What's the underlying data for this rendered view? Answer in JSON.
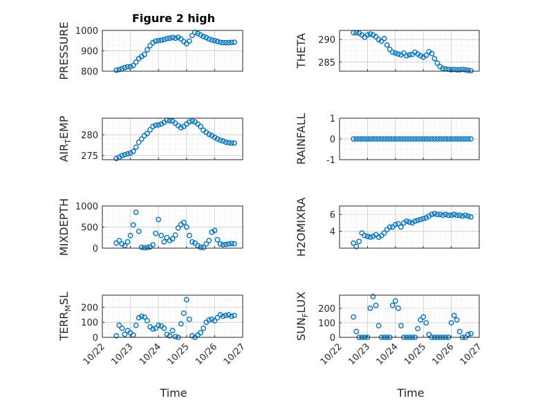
{
  "figure": {
    "title": "Figure 2 high"
  },
  "xaxis": {
    "label": "Time",
    "ticks": [
      "10/22",
      "10/23",
      "10/24",
      "10/25",
      "10/26",
      "10/27"
    ]
  },
  "marker_color": "#0072BD",
  "chart_data": [
    {
      "type": "scatter",
      "ylabel": "PRESSURE",
      "ylim": [
        800,
        1000
      ],
      "yticks": [
        "800",
        "900",
        "1000"
      ],
      "xlim": [
        0,
        5
      ],
      "x": [
        0.5,
        0.6,
        0.7,
        0.8,
        0.9,
        1.0,
        1.1,
        1.2,
        1.3,
        1.4,
        1.5,
        1.6,
        1.7,
        1.8,
        1.9,
        2.0,
        2.1,
        2.2,
        2.3,
        2.4,
        2.5,
        2.6,
        2.7,
        2.8,
        2.9,
        3.0,
        3.1,
        3.2,
        3.3,
        3.4,
        3.5,
        3.6,
        3.7,
        3.8,
        3.9,
        4.0,
        4.1,
        4.2,
        4.3,
        4.4,
        4.5,
        4.6,
        4.7
      ],
      "y": [
        805,
        808,
        812,
        818,
        822,
        822,
        828,
        845,
        862,
        872,
        882,
        905,
        925,
        940,
        948,
        950,
        952,
        955,
        960,
        962,
        965,
        962,
        966,
        958,
        945,
        935,
        948,
        975,
        990,
        985,
        978,
        970,
        965,
        958,
        953,
        950,
        946,
        942,
        940,
        940,
        940,
        941,
        942
      ]
    },
    {
      "type": "scatter",
      "ylabel": "THETA",
      "ylim": [
        283,
        292
      ],
      "yticks": [
        "285",
        "290"
      ],
      "xlim": [
        0,
        5
      ],
      "x": [
        0.5,
        0.6,
        0.7,
        0.8,
        0.9,
        1.0,
        1.1,
        1.2,
        1.3,
        1.4,
        1.5,
        1.6,
        1.7,
        1.8,
        1.9,
        2.0,
        2.1,
        2.2,
        2.3,
        2.4,
        2.5,
        2.6,
        2.7,
        2.8,
        2.9,
        3.0,
        3.1,
        3.2,
        3.3,
        3.4,
        3.5,
        3.6,
        3.7,
        3.8,
        3.9,
        4.0,
        4.1,
        4.2,
        4.3,
        4.4,
        4.5,
        4.6,
        4.7
      ],
      "y": [
        291.5,
        291.5,
        291.4,
        291.0,
        290.5,
        291.0,
        291.2,
        291.0,
        290.6,
        290.0,
        289.6,
        290.2,
        288.8,
        287.8,
        287.2,
        287.0,
        286.8,
        286.6,
        287.0,
        286.4,
        286.6,
        286.7,
        287.2,
        286.8,
        286.4,
        286.1,
        286.5,
        287.3,
        286.9,
        285.8,
        284.8,
        284.0,
        283.6,
        283.5,
        283.4,
        283.3,
        283.4,
        283.3,
        283.3,
        283.4,
        283.3,
        283.2,
        283.1
      ]
    },
    {
      "type": "scatter",
      "ylabel": "AIR_TEMP",
      "ylim": [
        274,
        284
      ],
      "yticks": [
        "275",
        "280"
      ],
      "xlim": [
        0,
        5
      ],
      "x": [
        0.5,
        0.6,
        0.7,
        0.8,
        0.9,
        1.0,
        1.1,
        1.2,
        1.3,
        1.4,
        1.5,
        1.6,
        1.7,
        1.8,
        1.9,
        2.0,
        2.1,
        2.2,
        2.3,
        2.4,
        2.5,
        2.6,
        2.7,
        2.8,
        2.9,
        3.0,
        3.1,
        3.2,
        3.3,
        3.4,
        3.5,
        3.6,
        3.7,
        3.8,
        3.9,
        4.0,
        4.1,
        4.2,
        4.3,
        4.4,
        4.5,
        4.6,
        4.7
      ],
      "y": [
        274.3,
        274.6,
        275.0,
        275.2,
        275.4,
        275.6,
        276.0,
        277.0,
        278.2,
        279.0,
        279.8,
        280.3,
        281.2,
        282.0,
        282.3,
        282.4,
        282.6,
        283.0,
        283.5,
        283.4,
        283.3,
        282.8,
        282.2,
        281.7,
        282.0,
        282.6,
        283.1,
        283.3,
        283.1,
        282.6,
        282.0,
        281.1,
        280.6,
        280.1,
        279.8,
        279.4,
        279.0,
        278.7,
        278.5,
        278.2,
        278.1,
        278.0,
        278.0
      ]
    },
    {
      "type": "scatter",
      "ylabel": "RAINFALL",
      "ylim": [
        -1,
        1
      ],
      "yticks": [
        "-1",
        "0",
        "1"
      ],
      "xlim": [
        0,
        5
      ],
      "x": [
        0.5,
        0.6,
        0.7,
        0.8,
        0.9,
        1.0,
        1.1,
        1.2,
        1.3,
        1.4,
        1.5,
        1.6,
        1.7,
        1.8,
        1.9,
        2.0,
        2.1,
        2.2,
        2.3,
        2.4,
        2.5,
        2.6,
        2.7,
        2.8,
        2.9,
        3.0,
        3.1,
        3.2,
        3.3,
        3.4,
        3.5,
        3.6,
        3.7,
        3.8,
        3.9,
        4.0,
        4.1,
        4.2,
        4.3,
        4.4,
        4.5,
        4.6,
        4.7
      ],
      "y": [
        0,
        0,
        0,
        0,
        0,
        0,
        0,
        0,
        0,
        0,
        0,
        0,
        0,
        0,
        0,
        0,
        0,
        0,
        0,
        0,
        0,
        0,
        0,
        0,
        0,
        0,
        0,
        0,
        0,
        0,
        0,
        0,
        0,
        0,
        0,
        0,
        0,
        0,
        0,
        0,
        0,
        0,
        0
      ]
    },
    {
      "type": "scatter",
      "ylabel": "MIXDEPTH",
      "ylim": [
        0,
        1000
      ],
      "yticks": [
        "0",
        "500",
        "1000"
      ],
      "xlim": [
        0,
        5
      ],
      "x": [
        0.5,
        0.6,
        0.7,
        0.8,
        0.9,
        1.0,
        1.1,
        1.2,
        1.3,
        1.4,
        1.5,
        1.6,
        1.7,
        1.8,
        1.9,
        2.0,
        2.1,
        2.2,
        2.3,
        2.4,
        2.5,
        2.6,
        2.7,
        2.8,
        2.9,
        3.0,
        3.1,
        3.2,
        3.3,
        3.4,
        3.5,
        3.6,
        3.7,
        3.8,
        3.9,
        4.0,
        4.1,
        4.2,
        4.3,
        4.4,
        4.5,
        4.6,
        4.7
      ],
      "y": [
        120,
        180,
        100,
        60,
        150,
        300,
        550,
        850,
        400,
        20,
        10,
        15,
        30,
        80,
        350,
        680,
        300,
        150,
        250,
        180,
        220,
        310,
        480,
        560,
        610,
        500,
        300,
        150,
        120,
        60,
        20,
        15,
        100,
        180,
        380,
        420,
        200,
        100,
        80,
        90,
        100,
        110,
        105
      ]
    },
    {
      "type": "scatter",
      "ylabel": "H2OMIXRA",
      "ylim": [
        2,
        7
      ],
      "yticks": [
        "4",
        "6"
      ],
      "xlim": [
        0,
        5
      ],
      "x": [
        0.5,
        0.6,
        0.7,
        0.8,
        0.9,
        1.0,
        1.1,
        1.2,
        1.3,
        1.4,
        1.5,
        1.6,
        1.7,
        1.8,
        1.9,
        2.0,
        2.1,
        2.2,
        2.3,
        2.4,
        2.5,
        2.6,
        2.7,
        2.8,
        2.9,
        3.0,
        3.1,
        3.2,
        3.3,
        3.4,
        3.5,
        3.6,
        3.7,
        3.8,
        3.9,
        4.0,
        4.1,
        4.2,
        4.3,
        4.4,
        4.5,
        4.6,
        4.7
      ],
      "y": [
        2.6,
        2.2,
        2.8,
        3.8,
        3.5,
        3.4,
        3.3,
        3.4,
        3.6,
        3.3,
        3.5,
        3.8,
        4.2,
        4.5,
        4.5,
        4.8,
        4.9,
        4.5,
        5.0,
        5.2,
        5.1,
        5.0,
        5.2,
        5.3,
        5.4,
        5.5,
        5.6,
        5.8,
        6.0,
        6.1,
        6.0,
        6.0,
        5.9,
        6.0,
        5.9,
        5.9,
        6.0,
        5.9,
        5.9,
        5.8,
        5.9,
        5.8,
        5.7
      ]
    },
    {
      "type": "scatter",
      "ylabel": "TERR_MSL",
      "ylim": [
        0,
        280
      ],
      "yticks": [
        "0",
        "100",
        "200"
      ],
      "xlim": [
        0,
        5
      ],
      "x": [
        0.5,
        0.6,
        0.7,
        0.8,
        0.9,
        1.0,
        1.1,
        1.2,
        1.3,
        1.4,
        1.5,
        1.6,
        1.7,
        1.8,
        1.9,
        2.0,
        2.1,
        2.2,
        2.3,
        2.4,
        2.5,
        2.6,
        2.7,
        2.8,
        2.9,
        3.0,
        3.1,
        3.2,
        3.3,
        3.4,
        3.5,
        3.6,
        3.7,
        3.8,
        3.9,
        4.0,
        4.1,
        4.2,
        4.3,
        4.4,
        4.5,
        4.6,
        4.7
      ],
      "y": [
        10,
        80,
        60,
        20,
        45,
        30,
        15,
        80,
        130,
        140,
        135,
        110,
        70,
        55,
        60,
        80,
        75,
        60,
        20,
        10,
        45,
        5,
        0,
        90,
        160,
        250,
        120,
        10,
        0,
        15,
        30,
        60,
        100,
        115,
        120,
        110,
        130,
        150,
        140,
        145,
        150,
        140,
        145
      ]
    },
    {
      "type": "scatter",
      "ylabel": "SUN_FLUX",
      "ylim": [
        0,
        290
      ],
      "yticks": [
        "0",
        "100",
        "200"
      ],
      "xlim": [
        0,
        5
      ],
      "x": [
        0.5,
        0.6,
        0.7,
        0.8,
        0.9,
        1.0,
        1.1,
        1.2,
        1.3,
        1.4,
        1.5,
        1.6,
        1.7,
        1.8,
        1.9,
        2.0,
        2.1,
        2.2,
        2.3,
        2.4,
        2.5,
        2.6,
        2.7,
        2.8,
        2.9,
        3.0,
        3.1,
        3.2,
        3.3,
        3.4,
        3.5,
        3.6,
        3.7,
        3.8,
        3.9,
        4.0,
        4.1,
        4.2,
        4.3,
        4.4,
        4.5,
        4.6,
        4.7
      ],
      "y": [
        140,
        40,
        0,
        0,
        0,
        0,
        200,
        280,
        220,
        80,
        0,
        0,
        0,
        0,
        220,
        250,
        200,
        80,
        0,
        0,
        0,
        0,
        0,
        60,
        120,
        140,
        100,
        20,
        0,
        0,
        0,
        0,
        0,
        0,
        0,
        100,
        150,
        120,
        40,
        0,
        0,
        20,
        25
      ]
    }
  ]
}
